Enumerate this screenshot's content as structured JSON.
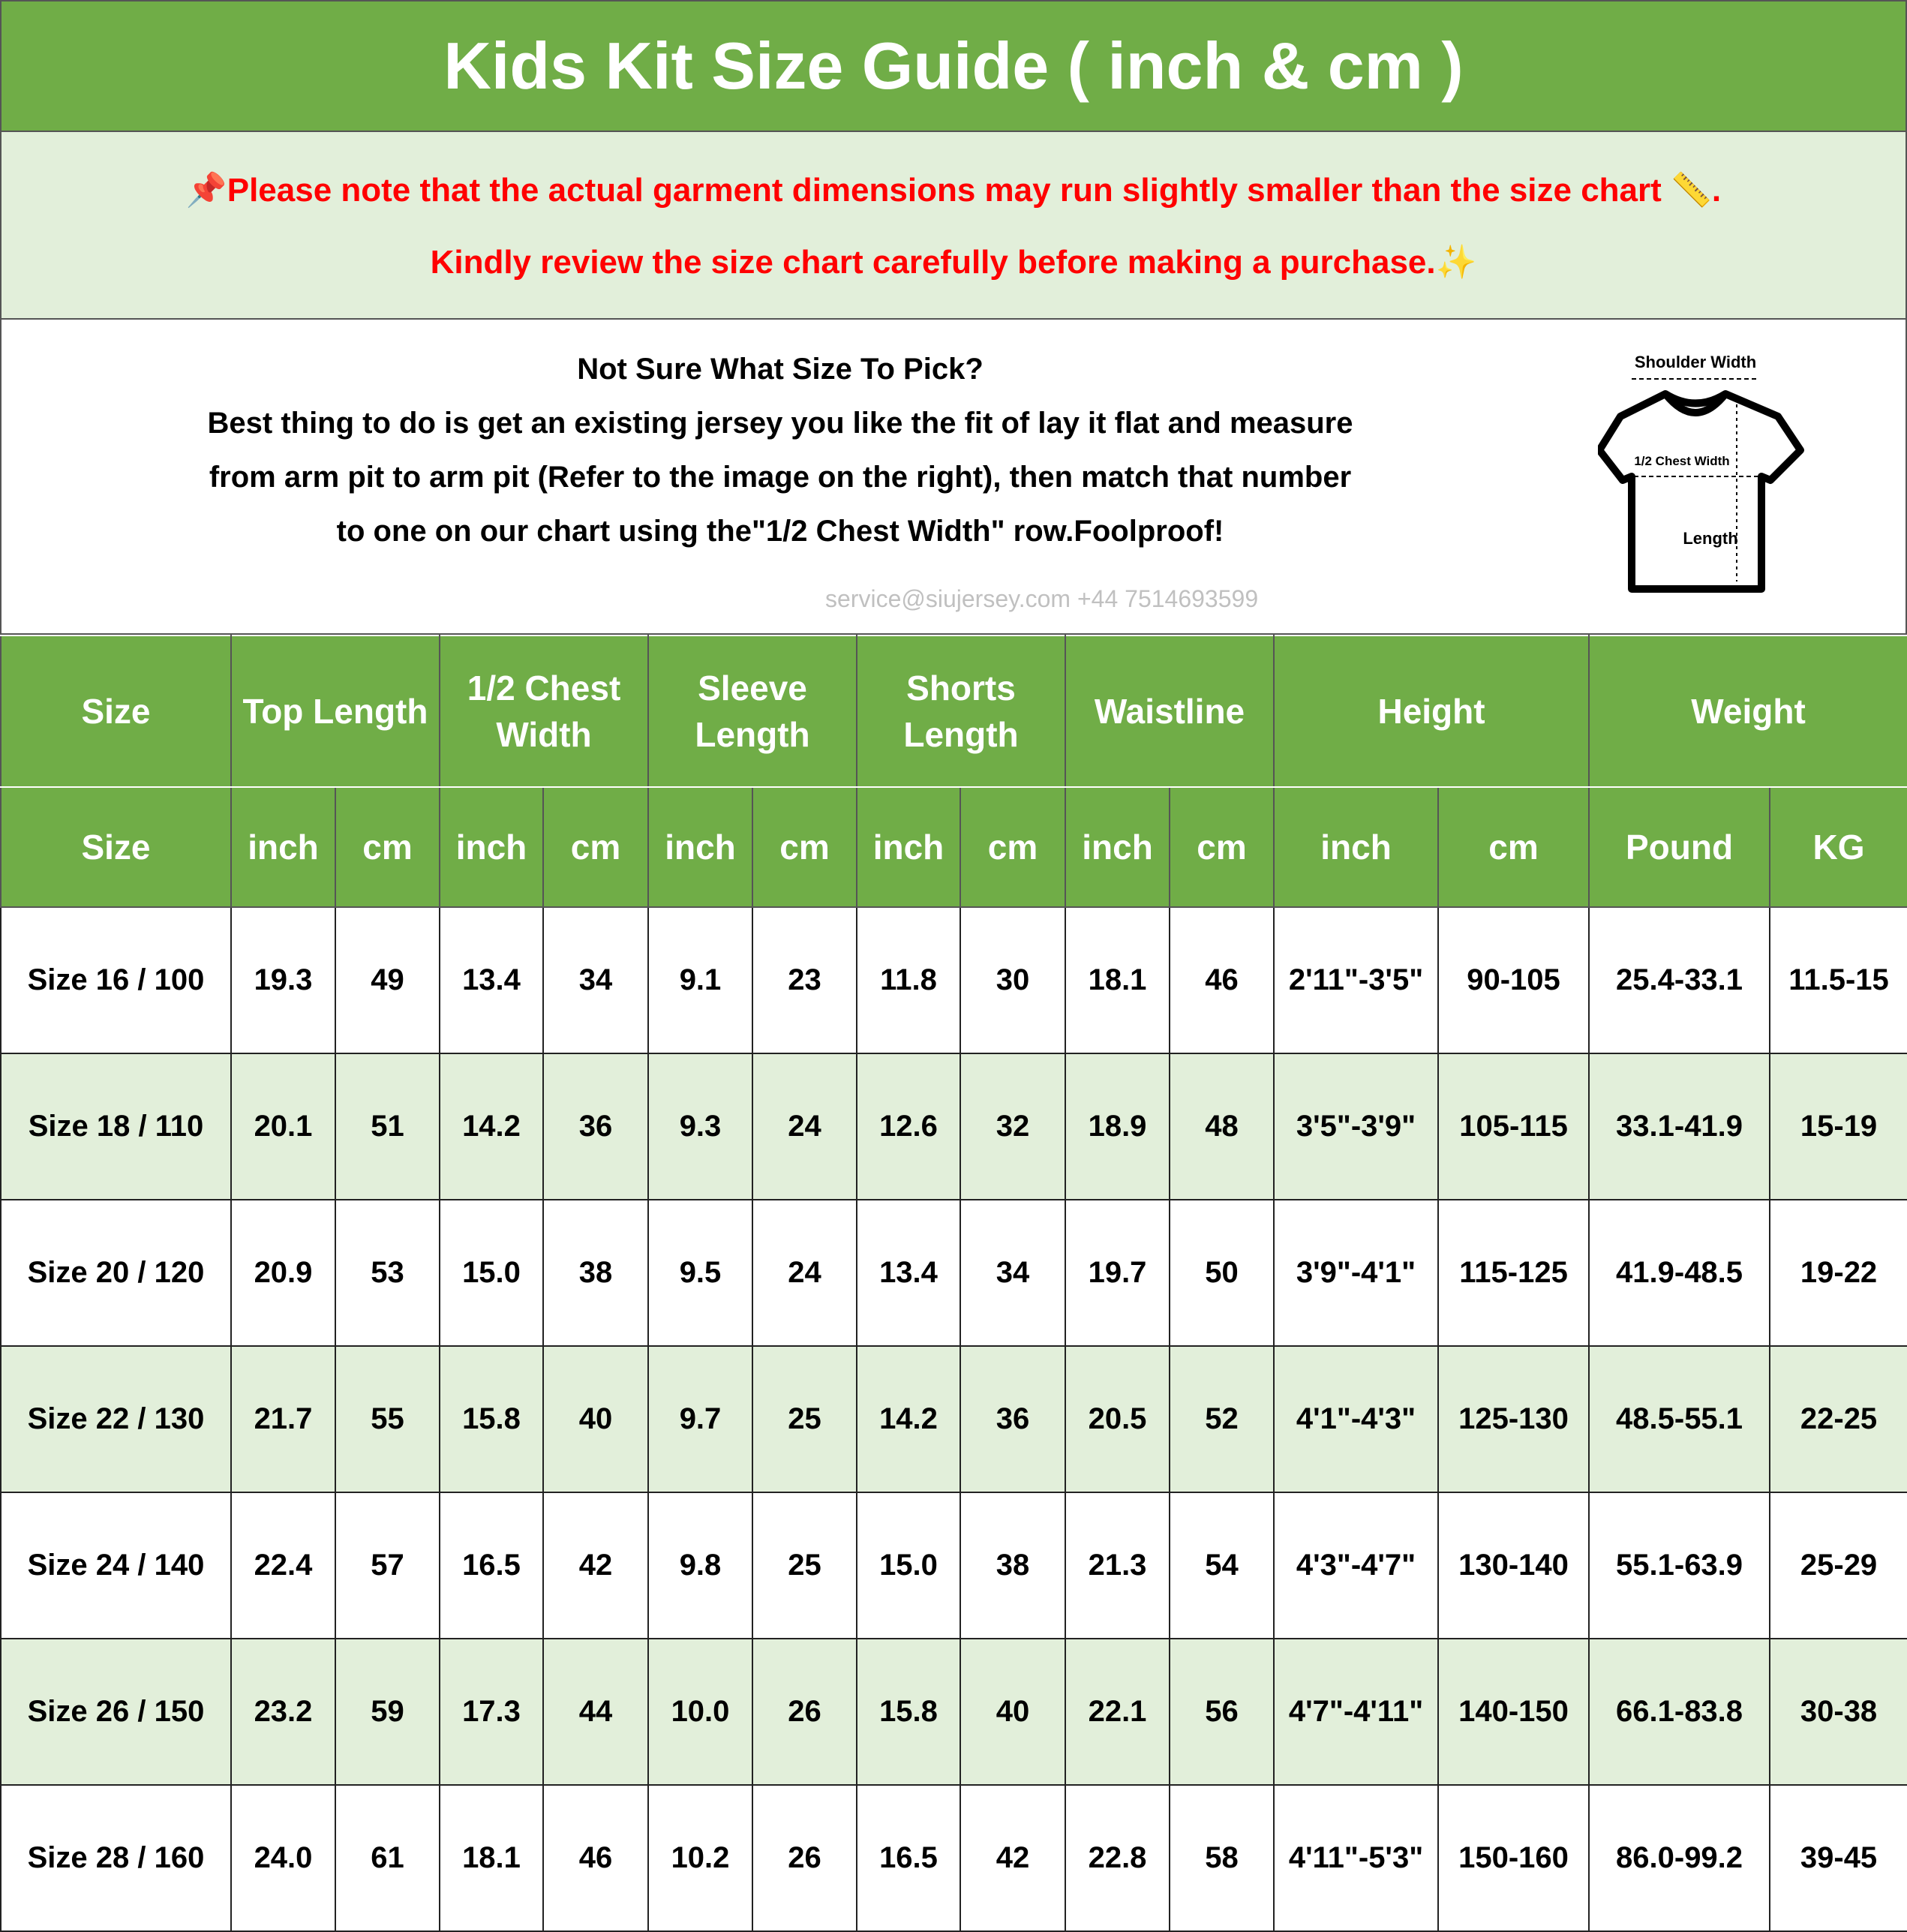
{
  "title": "Kids Kit Size Guide ( inch & cm )",
  "notice": {
    "line1": "Please note that the actual garment dimensions may run slightly smaller than the size chart",
    "line1_end": ".",
    "line2": "Kindly review the size chart carefully before making a purchase.",
    "icons": [
      "pushpin-icon",
      "ruler-icon",
      "sparkle-icon"
    ],
    "color": "#FF0000"
  },
  "info": {
    "heading": "Not Sure What Size To Pick?",
    "lines": [
      "Best thing to do is get an existing jersey you like the fit of lay it flat and measure",
      "from arm pit to arm pit (Refer to the image on the right), then match that number",
      "to one on our chart using the\"1/2 Chest Width\" row.Foolproof!"
    ],
    "diagram": {
      "shoulder": "Shoulder Width",
      "chest": "1/2 Chest Width",
      "length": "Length"
    }
  },
  "watermark": "service@siujersey.com   +44 7514693599",
  "colors": {
    "header_green": "#70AD47",
    "row_alt": "#E2EFDA"
  },
  "table": {
    "groups": [
      {
        "label": "Size",
        "span": 1
      },
      {
        "label": "Top Length",
        "span": 2
      },
      {
        "label": "1/2 Chest Width",
        "span": 2
      },
      {
        "label": "Sleeve Length",
        "span": 2
      },
      {
        "label": "Shorts Length",
        "span": 2
      },
      {
        "label": "Waistline",
        "span": 2
      },
      {
        "label": "Height",
        "span": 2
      },
      {
        "label": "Weight",
        "span": 2
      }
    ],
    "units": [
      "Size",
      "inch",
      "cm",
      "inch",
      "cm",
      "inch",
      "cm",
      "inch",
      "cm",
      "inch",
      "cm",
      "inch",
      "cm",
      "Pound",
      "KG"
    ],
    "rows": [
      [
        "Size 16 / 100",
        "19.3",
        "49",
        "13.4",
        "34",
        "9.1",
        "23",
        "11.8",
        "30",
        "18.1",
        "46",
        "2'11\"-3'5\"",
        "90-105",
        "25.4-33.1",
        "11.5-15"
      ],
      [
        "Size 18 / 110",
        "20.1",
        "51",
        "14.2",
        "36",
        "9.3",
        "24",
        "12.6",
        "32",
        "18.9",
        "48",
        "3'5\"-3'9\"",
        "105-115",
        "33.1-41.9",
        "15-19"
      ],
      [
        "Size 20 / 120",
        "20.9",
        "53",
        "15.0",
        "38",
        "9.5",
        "24",
        "13.4",
        "34",
        "19.7",
        "50",
        "3'9\"-4'1\"",
        "115-125",
        "41.9-48.5",
        "19-22"
      ],
      [
        "Size 22 / 130",
        "21.7",
        "55",
        "15.8",
        "40",
        "9.7",
        "25",
        "14.2",
        "36",
        "20.5",
        "52",
        "4'1\"-4'3\"",
        "125-130",
        "48.5-55.1",
        "22-25"
      ],
      [
        "Size 24 / 140",
        "22.4",
        "57",
        "16.5",
        "42",
        "9.8",
        "25",
        "15.0",
        "38",
        "21.3",
        "54",
        "4'3\"-4'7\"",
        "130-140",
        "55.1-63.9",
        "25-29"
      ],
      [
        "Size 26 / 150",
        "23.2",
        "59",
        "17.3",
        "44",
        "10.0",
        "26",
        "15.8",
        "40",
        "22.1",
        "56",
        "4'7\"-4'11\"",
        "140-150",
        "66.1-83.8",
        "30-38"
      ],
      [
        "Size 28 / 160",
        "24.0",
        "61",
        "18.1",
        "46",
        "10.2",
        "26",
        "16.5",
        "42",
        "22.8",
        "58",
        "4'11\"-5'3\"",
        "150-160",
        "86.0-99.2",
        "39-45"
      ]
    ]
  }
}
